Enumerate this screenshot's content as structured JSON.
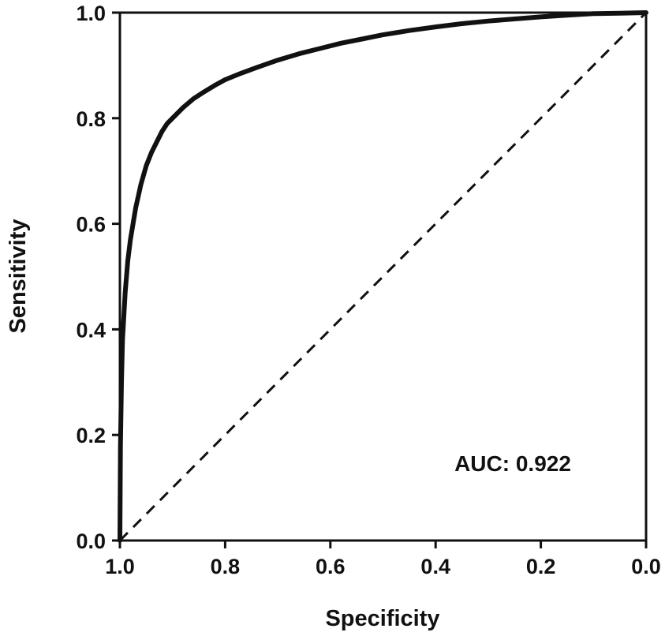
{
  "chart_data": {
    "type": "line",
    "xlabel": "Specificity",
    "ylabel": "Sensitivity",
    "xlim": [
      1.0,
      0.0
    ],
    "ylim": [
      0.0,
      1.0
    ],
    "x_reversed": true,
    "grid": false,
    "legend": "none",
    "xticks": [
      "1.0",
      "0.8",
      "0.6",
      "0.4",
      "0.2",
      "0.0"
    ],
    "yticks": [
      "0.0",
      "0.2",
      "0.4",
      "0.6",
      "0.8",
      "1.0"
    ],
    "annotation": "AUC: 0.922",
    "series": [
      {
        "style": "solid",
        "color": "#111111",
        "x": [
          1.0,
          0.999,
          0.997,
          0.995,
          0.99,
          0.985,
          0.98,
          0.97,
          0.96,
          0.95,
          0.94,
          0.93,
          0.92,
          0.91,
          0.9,
          0.88,
          0.86,
          0.84,
          0.82,
          0.8,
          0.77,
          0.74,
          0.7,
          0.66,
          0.62,
          0.58,
          0.54,
          0.5,
          0.45,
          0.4,
          0.35,
          0.3,
          0.25,
          0.2,
          0.15,
          0.1,
          0.05,
          0.0
        ],
        "y": [
          0.0,
          0.18,
          0.3,
          0.38,
          0.47,
          0.53,
          0.57,
          0.63,
          0.675,
          0.71,
          0.735,
          0.755,
          0.775,
          0.79,
          0.8,
          0.82,
          0.837,
          0.85,
          0.862,
          0.873,
          0.885,
          0.896,
          0.91,
          0.922,
          0.932,
          0.942,
          0.95,
          0.958,
          0.966,
          0.973,
          0.979,
          0.984,
          0.988,
          0.992,
          0.995,
          0.998,
          0.999,
          1.0
        ]
      },
      {
        "style": "dashed",
        "color": "#111111",
        "x": [
          1.0,
          0.0
        ],
        "y": [
          0.0,
          1.0
        ]
      }
    ]
  }
}
